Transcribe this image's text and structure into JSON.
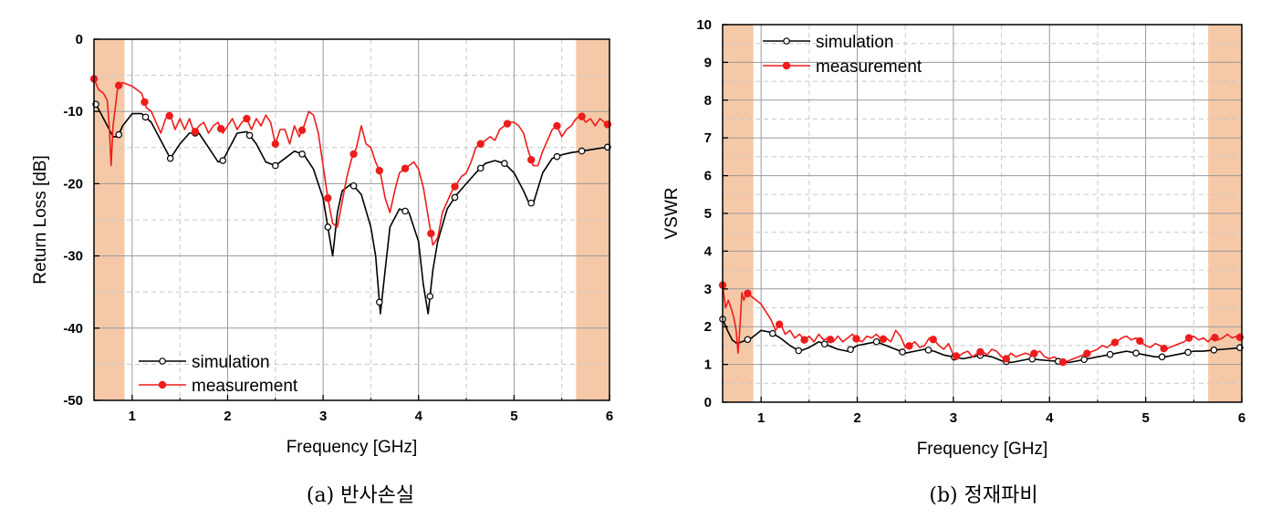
{
  "chart_data": [
    {
      "type": "line",
      "caption": "(a) 반사손실",
      "xlabel": "Frequency [GHz]",
      "ylabel": "Return Loss [dB]",
      "xlim": [
        0.6,
        6.0
      ],
      "ylim": [
        -50,
        0
      ],
      "xticks": [
        1,
        2,
        3,
        4,
        5,
        6
      ],
      "yticks": [
        0,
        -10,
        -20,
        -30,
        -40,
        -50
      ],
      "xtick_labels": [
        "1",
        "2",
        "3",
        "4",
        "5",
        "6"
      ],
      "ytick_labels": [
        "0",
        "-10",
        "-20",
        "-30",
        "-40",
        "-50"
      ],
      "grid": true,
      "legend_position": "bottom-left",
      "shaded_bands": [
        [
          0.6,
          0.92
        ],
        [
          5.65,
          6.0
        ]
      ],
      "shade_color": "#f5c9a8",
      "series": [
        {
          "name": "simulation",
          "color": "#000000",
          "marker": "open-circle",
          "x": [
            0.6,
            0.7,
            0.8,
            0.85,
            0.9,
            1.0,
            1.1,
            1.2,
            1.3,
            1.4,
            1.5,
            1.6,
            1.7,
            1.8,
            1.9,
            1.95,
            2.0,
            2.1,
            2.2,
            2.3,
            2.4,
            2.5,
            2.6,
            2.7,
            2.8,
            2.9,
            3.0,
            3.05,
            3.1,
            3.15,
            3.2,
            3.3,
            3.4,
            3.5,
            3.55,
            3.6,
            3.65,
            3.7,
            3.8,
            3.9,
            4.0,
            4.05,
            4.1,
            4.15,
            4.2,
            4.3,
            4.4,
            4.5,
            4.6,
            4.7,
            4.8,
            4.9,
            5.0,
            5.1,
            5.15,
            5.2,
            5.3,
            5.4,
            5.5,
            5.6,
            5.7,
            5.8,
            5.9,
            6.0
          ],
          "y": [
            -8.5,
            -11.0,
            -13.5,
            -13.5,
            -12.0,
            -10.3,
            -10.3,
            -11.5,
            -14.0,
            -16.5,
            -14.5,
            -13.0,
            -13.0,
            -15.0,
            -17.0,
            -16.8,
            -15.5,
            -13.0,
            -12.8,
            -14.5,
            -17.0,
            -17.5,
            -16.5,
            -15.5,
            -16.0,
            -18.0,
            -22.0,
            -26.0,
            -30.0,
            -24.0,
            -21.0,
            -20.0,
            -21.5,
            -26.0,
            -30.0,
            -38.0,
            -32.0,
            -26.0,
            -23.5,
            -24.0,
            -28.0,
            -34.0,
            -38.0,
            -32.0,
            -28.0,
            -23.5,
            -21.5,
            -20.0,
            -18.5,
            -17.2,
            -16.8,
            -17.2,
            -18.5,
            -21.0,
            -22.5,
            -22.8,
            -18.5,
            -16.5,
            -16.0,
            -15.7,
            -15.5,
            -15.3,
            -15.1,
            -14.9
          ],
          "marker_x": [
            0.62,
            0.86,
            1.14,
            1.4,
            1.66,
            1.95,
            2.23,
            2.5,
            2.78,
            3.05,
            3.32,
            3.59,
            3.86,
            4.12,
            4.38,
            4.65,
            4.9,
            5.18,
            5.45,
            5.71,
            5.98
          ]
        },
        {
          "name": "measurement",
          "color": "#ee1c1c",
          "marker": "filled-circle",
          "x": [
            0.6,
            0.65,
            0.7,
            0.74,
            0.76,
            0.78,
            0.8,
            0.85,
            0.9,
            1.0,
            1.1,
            1.15,
            1.2,
            1.25,
            1.3,
            1.35,
            1.4,
            1.45,
            1.5,
            1.55,
            1.6,
            1.65,
            1.7,
            1.75,
            1.8,
            1.85,
            1.9,
            1.95,
            2.0,
            2.05,
            2.1,
            2.15,
            2.2,
            2.25,
            2.3,
            2.35,
            2.4,
            2.45,
            2.5,
            2.55,
            2.6,
            2.65,
            2.7,
            2.75,
            2.8,
            2.85,
            2.9,
            2.95,
            3.0,
            3.05,
            3.1,
            3.15,
            3.2,
            3.25,
            3.3,
            3.35,
            3.4,
            3.45,
            3.5,
            3.55,
            3.6,
            3.65,
            3.7,
            3.75,
            3.8,
            3.85,
            3.9,
            3.95,
            4.0,
            4.05,
            4.1,
            4.15,
            4.2,
            4.25,
            4.3,
            4.35,
            4.4,
            4.45,
            4.5,
            4.55,
            4.6,
            4.65,
            4.7,
            4.75,
            4.8,
            4.85,
            4.9,
            4.95,
            5.0,
            5.05,
            5.1,
            5.15,
            5.2,
            5.25,
            5.3,
            5.35,
            5.4,
            5.45,
            5.5,
            5.55,
            5.6,
            5.65,
            5.7,
            5.75,
            5.8,
            5.85,
            5.9,
            5.95,
            6.0
          ],
          "y": [
            -5.5,
            -7.0,
            -7.5,
            -8.5,
            -12.0,
            -17.5,
            -12.0,
            -6.5,
            -6.0,
            -6.5,
            -7.5,
            -9.5,
            -10.0,
            -11.5,
            -13.0,
            -11.0,
            -10.5,
            -12.5,
            -11.0,
            -12.5,
            -11.0,
            -13.0,
            -12.0,
            -11.5,
            -13.0,
            -12.0,
            -11.5,
            -13.0,
            -12.0,
            -11.0,
            -12.5,
            -11.5,
            -11.0,
            -12.5,
            -11.0,
            -12.0,
            -10.5,
            -11.5,
            -14.5,
            -12.5,
            -12.5,
            -14.5,
            -12.0,
            -13.5,
            -12.0,
            -10.0,
            -10.5,
            -13.0,
            -17.5,
            -22.0,
            -25.5,
            -26.0,
            -22.5,
            -19.0,
            -16.5,
            -15.0,
            -12.0,
            -14.5,
            -15.0,
            -17.0,
            -18.5,
            -22.0,
            -24.0,
            -21.0,
            -18.5,
            -18.0,
            -17.5,
            -17.0,
            -18.0,
            -20.5,
            -24.5,
            -28.5,
            -27.5,
            -24.0,
            -22.5,
            -21.0,
            -20.0,
            -19.0,
            -18.5,
            -17.0,
            -15.0,
            -14.5,
            -14.0,
            -13.5,
            -14.0,
            -12.5,
            -12.0,
            -11.5,
            -11.5,
            -12.0,
            -13.0,
            -15.5,
            -17.5,
            -17.5,
            -15.5,
            -14.0,
            -12.5,
            -12.0,
            -13.5,
            -12.5,
            -12.0,
            -11.0,
            -10.5,
            -11.5,
            -11.0,
            -12.0,
            -11.0,
            -11.5,
            -12.0
          ],
          "marker_x": [
            0.6,
            0.86,
            1.13,
            1.39,
            1.66,
            1.93,
            2.2,
            2.5,
            2.78,
            3.05,
            3.32,
            3.59,
            3.86,
            4.13,
            4.38,
            4.65,
            4.93,
            5.18,
            5.45,
            5.71,
            5.98
          ]
        }
      ]
    },
    {
      "type": "line",
      "caption": "(b) 정재파비",
      "xlabel": "Frequency [GHz]",
      "ylabel": "VSWR",
      "xlim": [
        0.6,
        6.0
      ],
      "ylim": [
        0,
        10
      ],
      "xticks": [
        1,
        2,
        3,
        4,
        5,
        6
      ],
      "yticks": [
        0,
        1,
        2,
        3,
        4,
        5,
        6,
        7,
        8,
        9,
        10
      ],
      "xtick_labels": [
        "1",
        "2",
        "3",
        "4",
        "5",
        "6"
      ],
      "ytick_labels": [
        "0",
        "1",
        "2",
        "3",
        "4",
        "5",
        "6",
        "7",
        "8",
        "9",
        "10"
      ],
      "grid": true,
      "legend_position": "top-left",
      "shaded_bands": [
        [
          0.6,
          0.92
        ],
        [
          5.65,
          6.0
        ]
      ],
      "shade_color": "#f5c9a8",
      "series": [
        {
          "name": "simulation",
          "color": "#000000",
          "marker": "open-circle",
          "x": [
            0.6,
            0.65,
            0.7,
            0.75,
            0.8,
            0.85,
            0.9,
            0.95,
            1.0,
            1.1,
            1.2,
            1.3,
            1.4,
            1.5,
            1.6,
            1.7,
            1.8,
            1.9,
            2.0,
            2.1,
            2.2,
            2.3,
            2.4,
            2.5,
            2.6,
            2.7,
            2.8,
            2.9,
            3.0,
            3.1,
            3.2,
            3.3,
            3.4,
            3.5,
            3.6,
            3.7,
            3.8,
            3.9,
            4.0,
            4.1,
            4.2,
            4.3,
            4.4,
            4.5,
            4.6,
            4.7,
            4.8,
            4.9,
            5.0,
            5.1,
            5.2,
            5.3,
            5.4,
            5.5,
            5.6,
            5.7,
            5.8,
            5.9,
            6.0
          ],
          "y": [
            2.2,
            1.9,
            1.65,
            1.55,
            1.6,
            1.65,
            1.7,
            1.8,
            1.9,
            1.85,
            1.7,
            1.5,
            1.35,
            1.45,
            1.6,
            1.5,
            1.4,
            1.35,
            1.5,
            1.55,
            1.6,
            1.5,
            1.4,
            1.3,
            1.35,
            1.4,
            1.35,
            1.25,
            1.2,
            1.15,
            1.2,
            1.25,
            1.2,
            1.1,
            1.05,
            1.1,
            1.15,
            1.12,
            1.1,
            1.08,
            1.05,
            1.1,
            1.15,
            1.2,
            1.25,
            1.3,
            1.35,
            1.3,
            1.25,
            1.2,
            1.2,
            1.25,
            1.3,
            1.35,
            1.35,
            1.38,
            1.4,
            1.42,
            1.45
          ],
          "marker_x": [
            0.6,
            0.86,
            1.12,
            1.39,
            1.66,
            1.93,
            2.2,
            2.47,
            2.74,
            3.01,
            3.28,
            3.55,
            3.82,
            4.09,
            4.36,
            4.63,
            4.9,
            5.17,
            5.44,
            5.71,
            5.98
          ]
        },
        {
          "name": "measurement",
          "color": "#ee1c1c",
          "marker": "filled-circle",
          "x": [
            0.6,
            0.63,
            0.66,
            0.7,
            0.72,
            0.74,
            0.76,
            0.78,
            0.8,
            0.82,
            0.85,
            0.9,
            1.0,
            1.1,
            1.15,
            1.2,
            1.25,
            1.3,
            1.35,
            1.4,
            1.45,
            1.5,
            1.55,
            1.6,
            1.65,
            1.7,
            1.75,
            1.8,
            1.85,
            1.9,
            1.95,
            2.0,
            2.05,
            2.1,
            2.15,
            2.2,
            2.25,
            2.3,
            2.35,
            2.4,
            2.45,
            2.5,
            2.55,
            2.6,
            2.65,
            2.7,
            2.75,
            2.8,
            2.85,
            2.9,
            2.95,
            3.0,
            3.05,
            3.1,
            3.15,
            3.2,
            3.25,
            3.3,
            3.35,
            3.4,
            3.45,
            3.5,
            3.55,
            3.6,
            3.65,
            3.7,
            3.75,
            3.8,
            3.85,
            3.9,
            3.95,
            4.0,
            4.05,
            4.1,
            4.15,
            4.2,
            4.25,
            4.3,
            4.35,
            4.4,
            4.45,
            4.5,
            4.55,
            4.6,
            4.65,
            4.7,
            4.75,
            4.8,
            4.85,
            4.9,
            4.95,
            5.0,
            5.05,
            5.1,
            5.15,
            5.2,
            5.25,
            5.3,
            5.35,
            5.4,
            5.45,
            5.5,
            5.55,
            5.6,
            5.65,
            5.7,
            5.75,
            5.8,
            5.85,
            5.9,
            5.95,
            6.0
          ],
          "y": [
            3.1,
            2.5,
            2.7,
            2.4,
            2.2,
            1.9,
            1.3,
            2.0,
            2.9,
            2.7,
            2.9,
            2.8,
            2.6,
            2.2,
            1.9,
            2.1,
            1.8,
            1.9,
            1.7,
            1.8,
            1.65,
            1.75,
            1.6,
            1.8,
            1.65,
            1.7,
            1.6,
            1.75,
            1.6,
            1.7,
            1.8,
            1.65,
            1.6,
            1.75,
            1.7,
            1.8,
            1.65,
            1.7,
            1.6,
            1.9,
            1.75,
            1.45,
            1.5,
            1.6,
            1.45,
            1.5,
            1.7,
            1.65,
            1.5,
            1.4,
            1.55,
            1.25,
            1.2,
            1.3,
            1.35,
            1.2,
            1.3,
            1.35,
            1.25,
            1.4,
            1.35,
            1.2,
            1.15,
            1.3,
            1.2,
            1.25,
            1.3,
            1.25,
            1.3,
            1.35,
            1.2,
            1.15,
            1.2,
            1.1,
            1.05,
            1.1,
            1.15,
            1.2,
            1.25,
            1.3,
            1.35,
            1.4,
            1.5,
            1.45,
            1.55,
            1.6,
            1.7,
            1.75,
            1.65,
            1.7,
            1.6,
            1.5,
            1.45,
            1.55,
            1.5,
            1.4,
            1.45,
            1.5,
            1.55,
            1.6,
            1.7,
            1.75,
            1.65,
            1.7,
            1.6,
            1.75,
            1.65,
            1.7,
            1.8,
            1.7,
            1.75,
            1.7
          ],
          "marker_x": [
            0.6,
            0.86,
            1.19,
            1.45,
            1.72,
            1.99,
            2.27,
            2.54,
            2.79,
            3.03,
            3.28,
            3.55,
            3.84,
            4.14,
            4.39,
            4.68,
            4.94,
            5.19,
            5.45,
            5.72,
            5.98
          ]
        }
      ]
    }
  ]
}
